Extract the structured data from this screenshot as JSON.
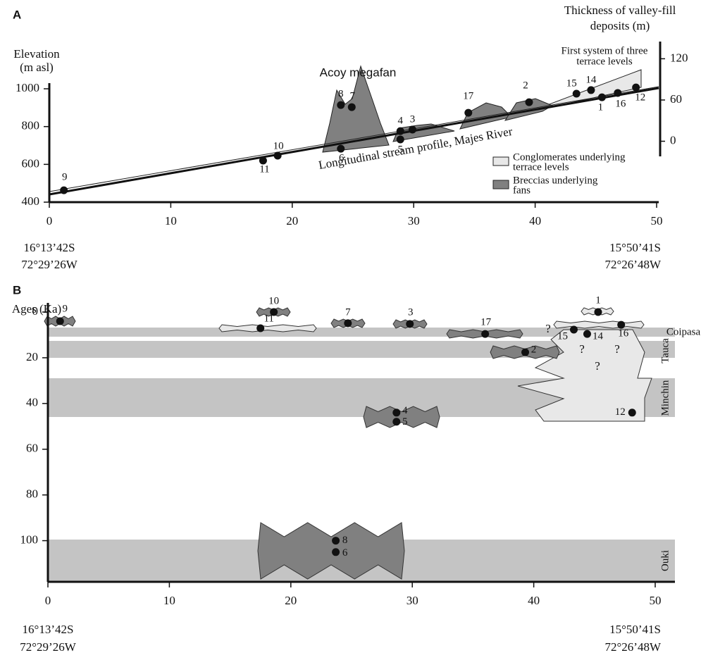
{
  "chart_data": [
    {
      "type": "scatter",
      "panel_label": "A",
      "y_label": [
        "Elevation",
        "(m asl)"
      ],
      "y2_label": [
        "Thickness of valley-fill",
        "deposits (m)"
      ],
      "annotations": [
        "Acoy megafan",
        "First system of three",
        "terrace levels",
        "Longitudinal stream profile, Majes River"
      ],
      "legend": [
        {
          "name": [
            "Conglomerates underlying",
            "terrace levels"
          ],
          "color": "#e8e8e8"
        },
        {
          "name": [
            "Breccias underlying",
            "fans"
          ],
          "color": "#808080"
        }
      ],
      "x_end_labels": {
        "left": [
          "16°13’42S",
          "72°29’26W"
        ],
        "right": [
          "15°50’41S",
          "72°26’48W"
        ]
      },
      "points": {
        "color": "#111",
        "labels": [
          "9",
          "11",
          "10",
          "6",
          "8",
          "7",
          "4",
          "5",
          "3",
          "17",
          "2",
          "15",
          "14",
          "1",
          "16",
          "12"
        ],
        "x": [
          1.2,
          17.6,
          18.8,
          24.0,
          24.0,
          24.9,
          28.9,
          28.9,
          29.9,
          34.5,
          39.5,
          43.4,
          44.6,
          45.5,
          46.8,
          48.3
        ],
        "y": [
          463,
          620,
          646,
          683,
          914,
          903,
          776,
          732,
          784,
          873,
          929,
          974,
          993,
          955,
          978,
          1007
        ]
      },
      "xlim": [
        0,
        50
      ],
      "ylim": [
        400,
        1030
      ],
      "y2lim": [
        -22,
        145
      ],
      "xticks": [
        0,
        10,
        20,
        30,
        40,
        50
      ],
      "yticks": [
        400,
        600,
        800,
        1000
      ],
      "y2ticks": [
        0,
        60,
        120
      ]
    },
    {
      "type": "scatter",
      "panel_label": "B",
      "y_label": [
        "Ages (Ka)"
      ],
      "band_labels": [
        "Coipasa",
        "Tauca",
        "Minchin",
        "Ouki"
      ],
      "annotations": [
        "?",
        "?",
        "?",
        "?"
      ],
      "x_end_labels": {
        "left": [
          "16°13’42S",
          "72°29’26W"
        ],
        "right": [
          "15°50’41S",
          "72°26’48W"
        ]
      },
      "points": {
        "color": "#111",
        "labels": [
          "9",
          "10",
          "11",
          "7",
          "3",
          "17",
          "1",
          "16",
          "15",
          "14",
          "2",
          "4",
          "5",
          "12",
          "8",
          "6"
        ],
        "x": [
          1.0,
          18.6,
          17.5,
          24.7,
          29.8,
          36.0,
          45.3,
          47.2,
          43.3,
          44.4,
          39.3,
          28.7,
          28.7,
          48.1,
          23.7,
          23.7
        ],
        "y": [
          4.0,
          0,
          7.1,
          4.9,
          5.2,
          9.6,
          0,
          5.6,
          7.7,
          9.6,
          17.6,
          44,
          48,
          44,
          100,
          105
        ]
      },
      "xlim": [
        0,
        50
      ],
      "ylim": [
        -4,
        118
      ],
      "y_inverted": true,
      "xticks": [
        0,
        10,
        20,
        30,
        40,
        50
      ],
      "yticks": [
        0,
        20,
        40,
        60,
        80,
        100
      ]
    }
  ]
}
